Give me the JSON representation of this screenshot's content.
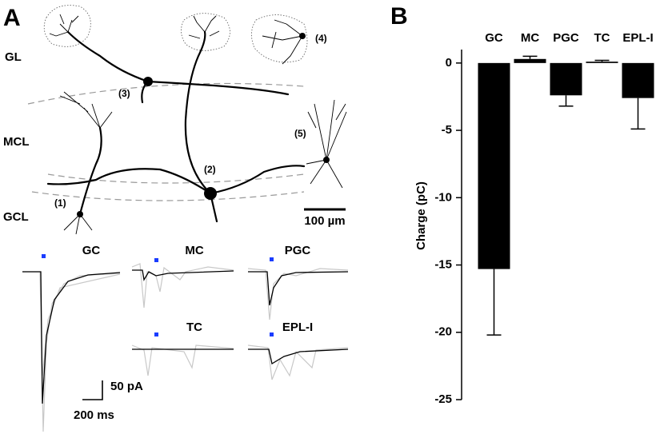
{
  "panel_a": {
    "label": "A",
    "layers": [
      "GL",
      "MCL",
      "GCL"
    ],
    "cell_numbers": [
      "(1)",
      "(2)",
      "(3)",
      "(4)",
      "(5)"
    ],
    "scale_bar": "100 µm",
    "traces": [
      "GC",
      "MC",
      "PGC",
      "TC",
      "EPL-I"
    ],
    "current_scale": "50 pA",
    "time_scale": "200 ms"
  },
  "chart_data": {
    "type": "bar",
    "panel_label": "B",
    "categories": [
      "GC",
      "MC",
      "PGC",
      "TC",
      "EPL-I"
    ],
    "values": [
      -15.3,
      0.3,
      -2.4,
      0.1,
      -2.6
    ],
    "errors": [
      4.9,
      0.2,
      0.8,
      0.1,
      2.3
    ],
    "color": "#000000",
    "ylabel": "Charge (pC)",
    "ylim": [
      -25,
      1
    ],
    "yticks": [
      0,
      -5,
      -10,
      -15,
      -20,
      -25
    ]
  }
}
